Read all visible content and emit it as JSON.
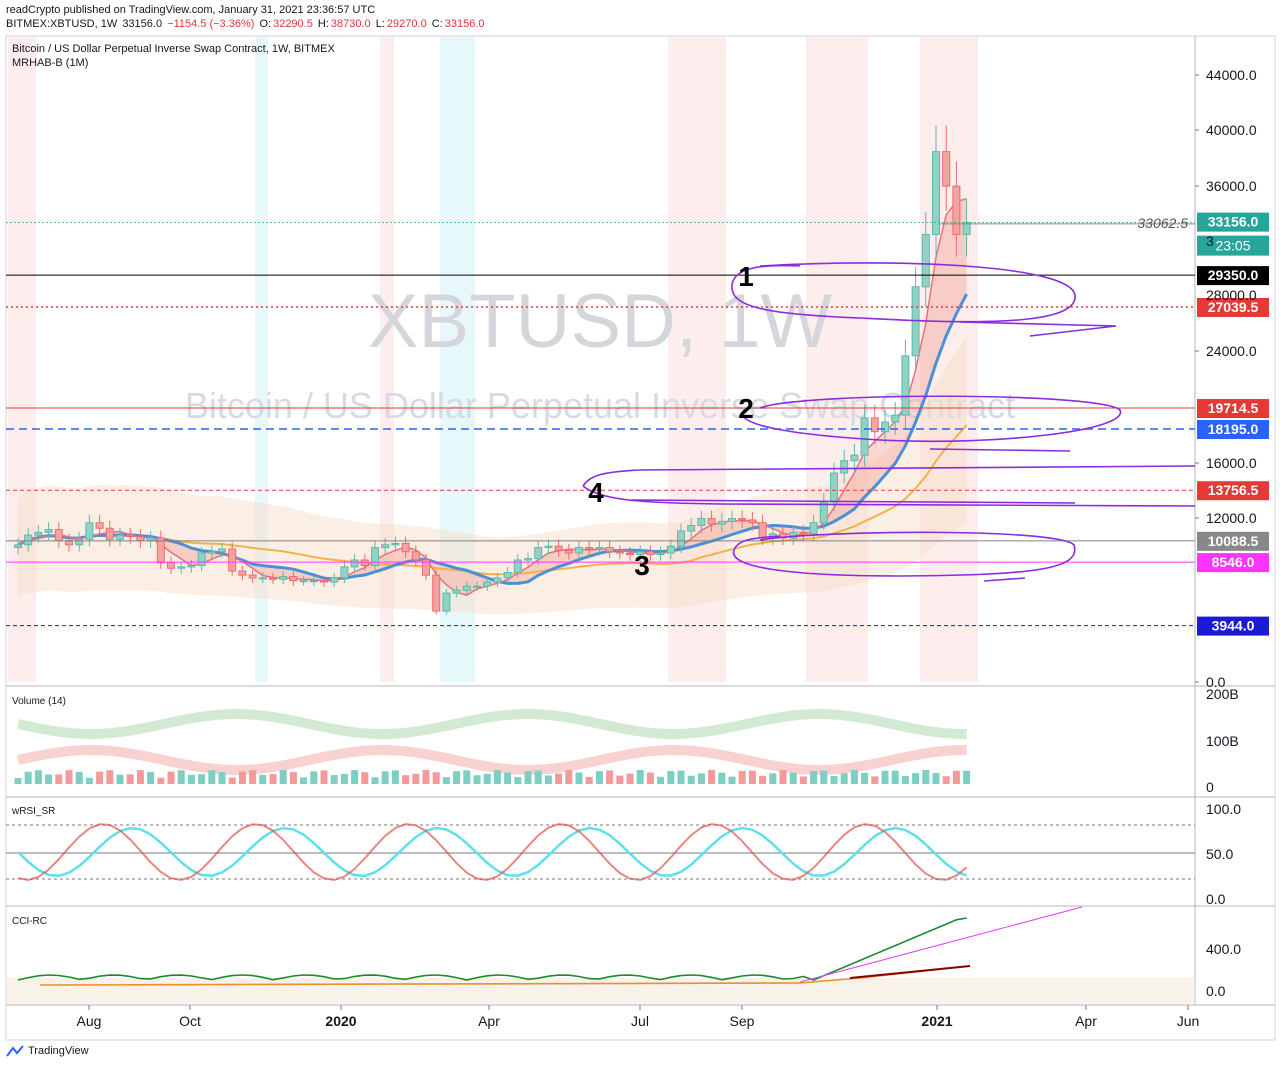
{
  "header": {
    "publisher_line": "readCrypto published on TradingView.com, January 31, 2021 23:36:57 UTC",
    "symbol": "BITMEX:XBTUSD, 1W",
    "last": "33156.0",
    "change": "−1154.5 (−3.36%)",
    "o_label": "O:",
    "o": "32290.5",
    "h_label": "H:",
    "h": "38730.0",
    "l_label": "L:",
    "l": "29270.0",
    "c_label": "C:",
    "c": "33156.0"
  },
  "chart_title": "Bitcoin / US Dollar Perpetual Inverse Swap Contract, 1W, BITMEX",
  "indicator_label": "MRHAB-B (1M)",
  "watermark": {
    "symbol": "XBTUSD, 1W",
    "description": "Bitcoin / US Dollar Perpetual Inverse Swap Contract"
  },
  "footer": {
    "brand": "TradingView"
  },
  "colors": {
    "up": "#26a69a",
    "down": "#ef5350",
    "annotation": "#8b2be2",
    "accent": "#2962ff"
  },
  "chart_data": {
    "type": "line",
    "title": "Bitcoin / US Dollar Perpetual Inverse Swap Contract, 1W, BITMEX",
    "ylim": [
      0,
      46000
    ],
    "x_tick_labels": [
      "Aug",
      "Oct",
      "2020",
      "Apr",
      "Jul",
      "Sep",
      "2021",
      "Apr",
      "Jun"
    ],
    "y_tick_labels": [
      "44000.0",
      "40000.0",
      "36000.0",
      "24000.0",
      "16000.0",
      "12000.0",
      "0.0"
    ],
    "partial_tick_labels": [
      "3",
      "28000.0"
    ],
    "series": [
      {
        "values": [
          9800,
          10500,
          10700,
          10900,
          10100,
          9800,
          10200,
          11400,
          11000,
          10200,
          10500,
          10400,
          10100,
          10300,
          8500,
          8100,
          8200,
          8300,
          9200,
          9300,
          9500,
          7900,
          7600,
          7400,
          7400,
          7300,
          7500,
          7200,
          7200,
          7200,
          7100,
          7400,
          8200,
          8700,
          8300,
          9600,
          9800,
          9900,
          9300,
          8700,
          7600,
          5000,
          6300,
          6500,
          6800,
          6800,
          7100,
          7400,
          7800,
          8700,
          8800,
          9600,
          9700,
          9400,
          9200,
          9600,
          9500,
          9600,
          9300,
          9200,
          9100,
          9300,
          9100,
          9200,
          9700,
          10800,
          11200,
          11700,
          11300,
          11500,
          11700,
          11600,
          11400,
          10300,
          10600,
          10300,
          10700,
          10600,
          11400,
          12900,
          15000,
          15900,
          16300,
          19000,
          18000,
          18700,
          19200,
          23500,
          28500,
          32300,
          38300,
          35800,
          32300,
          33156
        ]
      }
    ],
    "price_lines": [
      {
        "value": 33156.0,
        "label": "33156.0",
        "color": "#26a69a"
      },
      {
        "value": 33062.5,
        "label": "33062.5",
        "color": "#888888"
      },
      {
        "value": 29350.0,
        "label": "29350.0",
        "color": "#000000"
      },
      {
        "value": 27039.5,
        "label": "27039.5",
        "color": "#e53935"
      },
      {
        "value": 19714.5,
        "label": "19714.5",
        "color": "#e53935"
      },
      {
        "value": 18195.0,
        "label": "18195.0",
        "color": "#2962ff"
      },
      {
        "value": 13756.5,
        "label": "13756.5",
        "color": "#e53935"
      },
      {
        "value": 10088.5,
        "label": "10088.5",
        "color": "#808080"
      },
      {
        "value": 8546.0,
        "label": "8546.0",
        "color": "#ff33ff"
      },
      {
        "value": 3944.0,
        "label": "3944.0",
        "color": "#1b1bd6"
      }
    ],
    "countdown": "23:05",
    "annotations": [
      "1",
      "2",
      "3",
      "4"
    ],
    "panes": [
      {
        "name": "Volume (14)",
        "y_tick_labels": [
          "200B",
          "100B",
          "0"
        ]
      },
      {
        "name": "wRSI_SR",
        "y_tick_labels": [
          "100.0",
          "50.0",
          "0.0"
        ]
      },
      {
        "name": "CCI-RC",
        "y_tick_labels": [
          "400.0",
          "0.0"
        ]
      }
    ]
  }
}
